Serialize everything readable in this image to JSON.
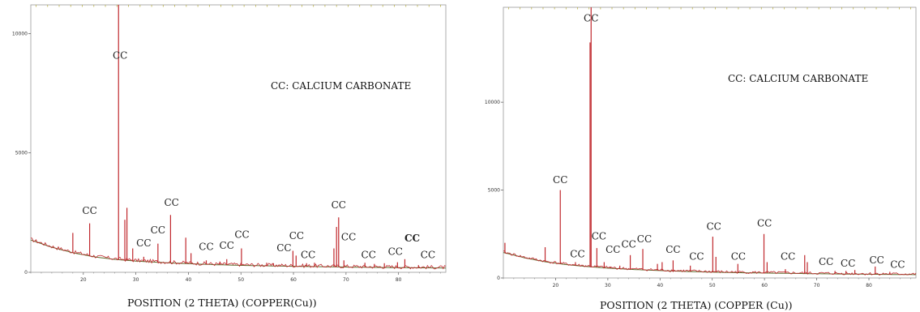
{
  "chart_data": [
    {
      "type": "line",
      "legend": "CC: CALCIUM CARBONATE",
      "xlabel": "POSITION (2 THETA) (COPPER(Cu))",
      "ylabel": "",
      "xlim": [
        10,
        89
      ],
      "ylim": [
        0,
        11200
      ],
      "x_ticks": [
        "20",
        "30",
        "40",
        "50",
        "60",
        "70",
        "80"
      ],
      "x_tick_values": [
        20,
        30,
        40,
        50,
        60,
        70,
        80
      ],
      "y_ticks": [
        "0",
        "5000",
        "10000"
      ],
      "y_tick_values": [
        0,
        5000,
        10000
      ],
      "colors": {
        "pattern": "#c0282d",
        "background": "#5d6b2b"
      },
      "baseline": [
        [
          10,
          1350
        ],
        [
          14,
          1050
        ],
        [
          18,
          820
        ],
        [
          22,
          650
        ],
        [
          26,
          540
        ],
        [
          30,
          470
        ],
        [
          35,
          410
        ],
        [
          40,
          360
        ],
        [
          45,
          320
        ],
        [
          50,
          290
        ],
        [
          55,
          270
        ],
        [
          60,
          250
        ],
        [
          65,
          235
        ],
        [
          70,
          220
        ],
        [
          75,
          205
        ],
        [
          80,
          195
        ],
        [
          89,
          180
        ]
      ],
      "peaks": [
        [
          18.0,
          1650
        ],
        [
          21.2,
          2050
        ],
        [
          26.7,
          11200
        ],
        [
          27.9,
          2200
        ],
        [
          28.3,
          2700
        ],
        [
          29.4,
          1000
        ],
        [
          31.5,
          650
        ],
        [
          34.2,
          1200
        ],
        [
          36.6,
          2400
        ],
        [
          39.5,
          1450
        ],
        [
          40.5,
          800
        ],
        [
          43.4,
          500
        ],
        [
          46.0,
          450
        ],
        [
          47.3,
          550
        ],
        [
          50.1,
          1000
        ],
        [
          54.9,
          400
        ],
        [
          56.2,
          380
        ],
        [
          59.9,
          900
        ],
        [
          60.5,
          700
        ],
        [
          62.5,
          380
        ],
        [
          64.0,
          400
        ],
        [
          67.7,
          1000
        ],
        [
          68.2,
          1900
        ],
        [
          68.6,
          2300
        ],
        [
          69.6,
          500
        ],
        [
          73.6,
          400
        ],
        [
          75.4,
          350
        ],
        [
          77.3,
          380
        ],
        [
          79.8,
          420
        ],
        [
          81.2,
          550
        ],
        [
          83.8,
          300
        ]
      ],
      "peak_labels": [
        {
          "text": "CC",
          "x": 21.2,
          "y": 2300,
          "bold": false
        },
        {
          "text": "CC",
          "x": 27.0,
          "y": 8800,
          "bold": false
        },
        {
          "text": "CC",
          "x": 31.5,
          "y": 950,
          "bold": false
        },
        {
          "text": "CC",
          "x": 34.2,
          "y": 1500,
          "bold": false
        },
        {
          "text": "CC",
          "x": 36.8,
          "y": 2650,
          "bold": false
        },
        {
          "text": "CC",
          "x": 43.4,
          "y": 800,
          "bold": false
        },
        {
          "text": "CC",
          "x": 47.3,
          "y": 850,
          "bold": false
        },
        {
          "text": "CC",
          "x": 50.2,
          "y": 1300,
          "bold": false
        },
        {
          "text": "CC",
          "x": 58.2,
          "y": 750,
          "bold": false
        },
        {
          "text": "CC",
          "x": 60.6,
          "y": 1250,
          "bold": false
        },
        {
          "text": "CC",
          "x": 62.8,
          "y": 450,
          "bold": false
        },
        {
          "text": "CC",
          "x": 68.6,
          "y": 2550,
          "bold": false
        },
        {
          "text": "CC",
          "x": 70.5,
          "y": 1200,
          "bold": false
        },
        {
          "text": "CC",
          "x": 74.3,
          "y": 450,
          "bold": false
        },
        {
          "text": "CC",
          "x": 79.4,
          "y": 600,
          "bold": false
        },
        {
          "text": "CC",
          "x": 82.6,
          "y": 1150,
          "bold": true
        },
        {
          "text": "CC",
          "x": 85.6,
          "y": 450,
          "bold": false
        }
      ]
    },
    {
      "type": "line",
      "legend": "CC: CALCIUM CARBONATE",
      "xlabel": "POSITION (2 THETA) (COPPER (Cu))",
      "ylabel": "",
      "xlim": [
        10,
        89
      ],
      "ylim": [
        0,
        15400
      ],
      "x_ticks": [
        "20",
        "30",
        "40",
        "50",
        "60",
        "70",
        "80"
      ],
      "x_tick_values": [
        20,
        30,
        40,
        50,
        60,
        70,
        80
      ],
      "y_ticks": [
        "0",
        "5000",
        "10000"
      ],
      "y_tick_values": [
        0,
        5000,
        10000
      ],
      "colors": {
        "pattern": "#c0282d",
        "background": "#5d6b2b"
      },
      "baseline": [
        [
          10,
          1450
        ],
        [
          14,
          1150
        ],
        [
          18,
          920
        ],
        [
          22,
          760
        ],
        [
          26,
          650
        ],
        [
          30,
          560
        ],
        [
          35,
          480
        ],
        [
          40,
          420
        ],
        [
          45,
          370
        ],
        [
          50,
          330
        ],
        [
          55,
          300
        ],
        [
          60,
          280
        ],
        [
          65,
          260
        ],
        [
          70,
          240
        ],
        [
          75,
          225
        ],
        [
          80,
          210
        ],
        [
          89,
          190
        ]
      ],
      "peaks": [
        [
          10.3,
          2000
        ],
        [
          18.0,
          1750
        ],
        [
          20.9,
          5000
        ],
        [
          23.8,
          900
        ],
        [
          26.6,
          13400
        ],
        [
          26.8,
          15400
        ],
        [
          27.9,
          1700
        ],
        [
          29.3,
          900
        ],
        [
          30.5,
          650
        ],
        [
          32.3,
          700
        ],
        [
          34.3,
          1300
        ],
        [
          36.7,
          1650
        ],
        [
          39.5,
          800
        ],
        [
          40.4,
          900
        ],
        [
          42.5,
          1000
        ],
        [
          45.8,
          700
        ],
        [
          50.1,
          2350
        ],
        [
          50.7,
          1200
        ],
        [
          54.9,
          800
        ],
        [
          59.9,
          2500
        ],
        [
          60.5,
          900
        ],
        [
          64.0,
          500
        ],
        [
          67.7,
          1300
        ],
        [
          68.2,
          900
        ],
        [
          73.5,
          400
        ],
        [
          75.6,
          400
        ],
        [
          77.3,
          450
        ],
        [
          81.2,
          650
        ],
        [
          84.0,
          350
        ]
      ],
      "peak_labels": [
        {
          "text": "CC",
          "x": 20.9,
          "y": 5200,
          "bold": false
        },
        {
          "text": "CC",
          "x": 26.8,
          "y": 14400,
          "bold": false
        },
        {
          "text": "CC",
          "x": 24.2,
          "y": 1000,
          "bold": false
        },
        {
          "text": "CC",
          "x": 28.3,
          "y": 2000,
          "bold": false
        },
        {
          "text": "CC",
          "x": 31.0,
          "y": 1250,
          "bold": false
        },
        {
          "text": "CC",
          "x": 34.0,
          "y": 1550,
          "bold": false
        },
        {
          "text": "CC",
          "x": 37.0,
          "y": 1850,
          "bold": false
        },
        {
          "text": "CC",
          "x": 42.5,
          "y": 1250,
          "bold": false
        },
        {
          "text": "CC",
          "x": 47.0,
          "y": 850,
          "bold": false
        },
        {
          "text": "CC",
          "x": 50.3,
          "y": 2550,
          "bold": false
        },
        {
          "text": "CC",
          "x": 55.0,
          "y": 850,
          "bold": false
        },
        {
          "text": "CC",
          "x": 60.0,
          "y": 2750,
          "bold": false
        },
        {
          "text": "CC",
          "x": 64.5,
          "y": 850,
          "bold": false
        },
        {
          "text": "CC",
          "x": 71.8,
          "y": 550,
          "bold": false
        },
        {
          "text": "CC",
          "x": 76.0,
          "y": 450,
          "bold": false
        },
        {
          "text": "CC",
          "x": 81.5,
          "y": 650,
          "bold": false
        },
        {
          "text": "CC",
          "x": 85.5,
          "y": 400,
          "bold": false
        }
      ]
    }
  ]
}
